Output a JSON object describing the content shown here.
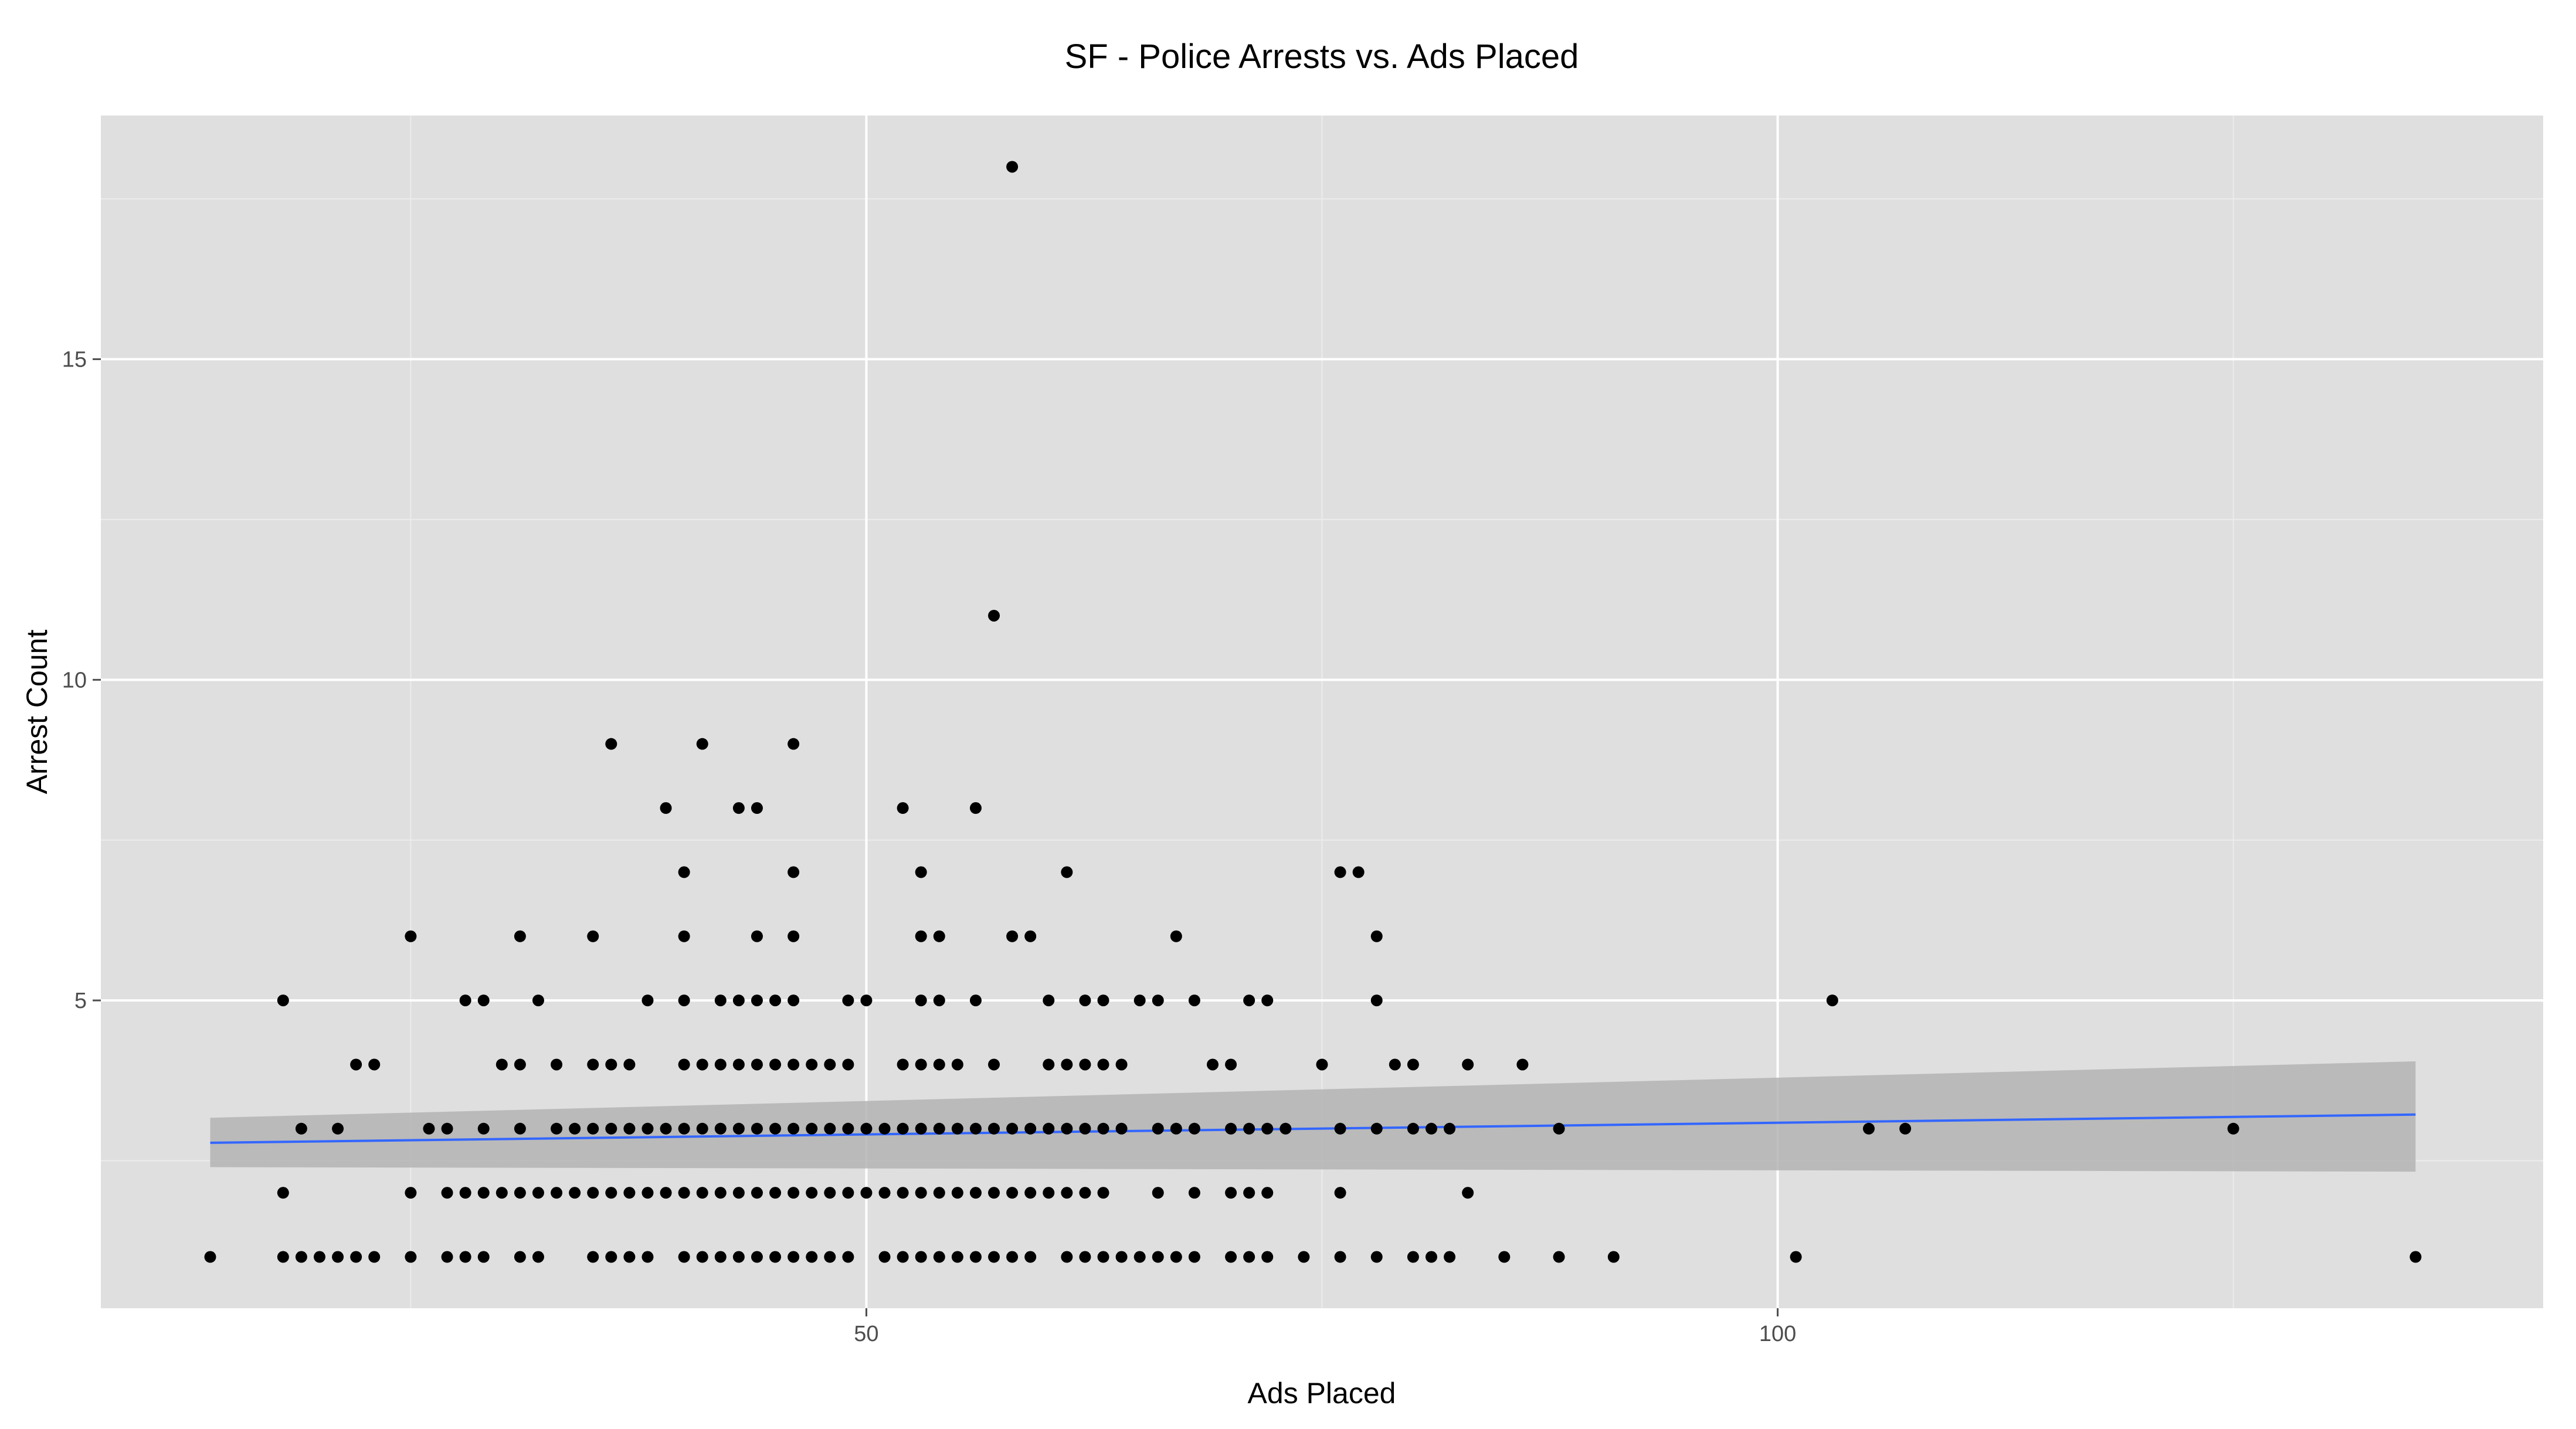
{
  "chart_data": {
    "type": "scatter",
    "title": "SF - Police Arrests vs. Ads Placed",
    "xlabel": "Ads Placed",
    "ylabel": "Arrest Count",
    "xlim": [
      8,
      142
    ],
    "ylim": [
      0.2,
      18.8
    ],
    "x_ticks": [
      50,
      100
    ],
    "x_minor_ticks": [
      25,
      75,
      125
    ],
    "y_ticks": [
      5,
      10,
      15
    ],
    "y_minor_ticks": [
      2.5,
      7.5,
      12.5,
      17.5
    ],
    "grid": true,
    "colors": {
      "panel": "#dfdfdf",
      "grid_major": "#ffffff",
      "points": "#000000",
      "trend_line": "#3366ff",
      "confidence_band": "#b4b4b4"
    },
    "trend": {
      "x": [
        14,
        135
      ],
      "y": [
        2.78,
        3.22
      ],
      "band_lower": [
        2.4,
        2.33
      ],
      "band_upper": [
        3.17,
        4.05
      ]
    },
    "points": {
      "x": [
        14,
        18,
        19,
        20,
        21,
        22,
        23,
        25,
        27,
        28,
        29,
        31,
        32,
        35,
        36,
        37,
        38,
        40,
        41,
        42,
        43,
        44,
        45,
        46,
        47,
        48,
        49,
        51,
        52,
        53,
        54,
        55,
        56,
        57,
        58,
        59,
        61,
        62,
        63,
        64,
        65,
        66,
        67,
        68,
        70,
        71,
        72,
        74,
        76,
        78,
        80,
        81,
        82,
        85,
        88,
        91,
        101,
        135,
        18,
        25,
        27,
        28,
        29,
        30,
        31,
        32,
        33,
        34,
        35,
        36,
        37,
        38,
        39,
        40,
        41,
        42,
        43,
        44,
        45,
        46,
        47,
        48,
        49,
        50,
        51,
        52,
        53,
        54,
        55,
        56,
        57,
        58,
        59,
        60,
        61,
        62,
        63,
        66,
        68,
        70,
        71,
        72,
        76,
        83,
        19,
        21,
        26,
        27,
        29,
        31,
        33,
        34,
        35,
        36,
        37,
        38,
        39,
        40,
        41,
        42,
        43,
        44,
        45,
        46,
        47,
        48,
        49,
        50,
        51,
        52,
        53,
        54,
        55,
        56,
        57,
        58,
        59,
        60,
        61,
        62,
        63,
        64,
        66,
        67,
        68,
        70,
        71,
        72,
        73,
        76,
        78,
        80,
        81,
        82,
        88,
        105,
        107,
        125,
        22,
        23,
        30,
        31,
        33,
        35,
        36,
        37,
        40,
        41,
        42,
        43,
        44,
        45,
        46,
        47,
        48,
        49,
        52,
        53,
        54,
        55,
        57,
        60,
        61,
        62,
        63,
        64,
        69,
        70,
        75,
        79,
        80,
        83,
        86,
        18,
        28,
        29,
        32,
        38,
        40,
        42,
        43,
        44,
        45,
        46,
        49,
        50,
        53,
        54,
        56,
        60,
        62,
        63,
        65,
        66,
        68,
        71,
        72,
        78,
        103,
        25,
        31,
        35,
        40,
        44,
        46,
        53,
        54,
        58,
        59,
        67,
        78,
        40,
        46,
        53,
        61,
        76,
        77,
        39,
        43,
        44,
        52,
        56,
        36,
        41,
        46,
        57,
        58
      ],
      "y": [
        1,
        1,
        1,
        1,
        1,
        1,
        1,
        1,
        1,
        1,
        1,
        1,
        1,
        1,
        1,
        1,
        1,
        1,
        1,
        1,
        1,
        1,
        1,
        1,
        1,
        1,
        1,
        1,
        1,
        1,
        1,
        1,
        1,
        1,
        1,
        1,
        1,
        1,
        1,
        1,
        1,
        1,
        1,
        1,
        1,
        1,
        1,
        1,
        1,
        1,
        1,
        1,
        1,
        1,
        1,
        1,
        1,
        1,
        2,
        2,
        2,
        2,
        2,
        2,
        2,
        2,
        2,
        2,
        2,
        2,
        2,
        2,
        2,
        2,
        2,
        2,
        2,
        2,
        2,
        2,
        2,
        2,
        2,
        2,
        2,
        2,
        2,
        2,
        2,
        2,
        2,
        2,
        2,
        2,
        2,
        2,
        2,
        2,
        2,
        2,
        2,
        2,
        2,
        2,
        3,
        3,
        3,
        3,
        3,
        3,
        3,
        3,
        3,
        3,
        3,
        3,
        3,
        3,
        3,
        3,
        3,
        3,
        3,
        3,
        3,
        3,
        3,
        3,
        3,
        3,
        3,
        3,
        3,
        3,
        3,
        3,
        3,
        3,
        3,
        3,
        3,
        3,
        3,
        3,
        3,
        3,
        3,
        3,
        3,
        3,
        3,
        3,
        3,
        3,
        3,
        3,
        3,
        3,
        4,
        4,
        4,
        4,
        4,
        4,
        4,
        4,
        4,
        4,
        4,
        4,
        4,
        4,
        4,
        4,
        4,
        4,
        4,
        4,
        4,
        4,
        4,
        4,
        4,
        4,
        4,
        4,
        4,
        4,
        4,
        4,
        4,
        4,
        4,
        5,
        5,
        5,
        5,
        5,
        5,
        5,
        5,
        5,
        5,
        5,
        5,
        5,
        5,
        5,
        5,
        5,
        5,
        5,
        5,
        5,
        5,
        5,
        5,
        5,
        5,
        6,
        6,
        6,
        6,
        6,
        6,
        6,
        6,
        6,
        6,
        6,
        6,
        7,
        7,
        7,
        7,
        7,
        7,
        8,
        8,
        8,
        8,
        8,
        9,
        9,
        9,
        11,
        18
      ]
    }
  }
}
